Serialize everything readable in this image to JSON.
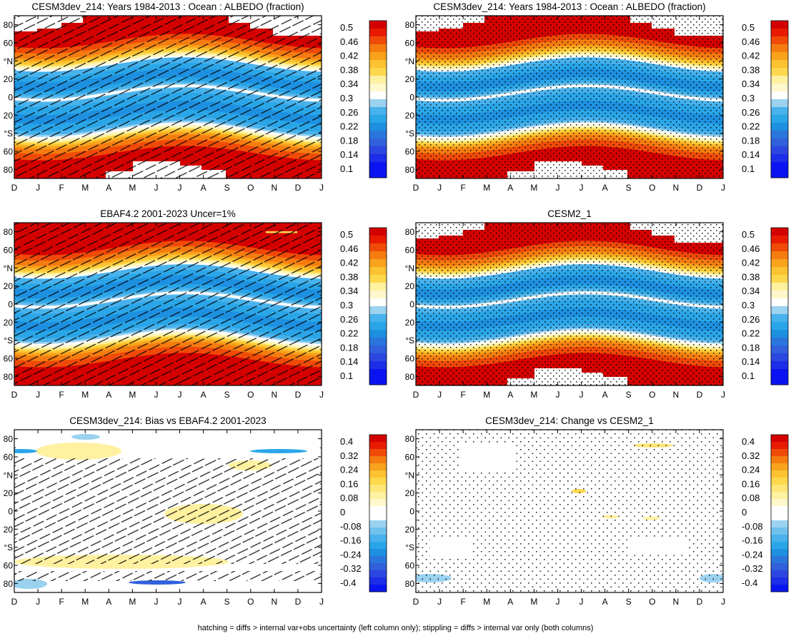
{
  "caption": "hatching = diffs > internal var+obs uncertainty (left column only); stippling = diffs > internal var only (both columns)",
  "colors": {
    "white": "#ffffff",
    "black": "#000000",
    "c50": "#d40000",
    "c48": "#e81a00",
    "c46": "#f04a08",
    "c44": "#f57c10",
    "c42": "#f9a21c",
    "c40": "#fcc230",
    "c38": "#fed84c",
    "c36": "#fee678",
    "c34": "#fff1a0",
    "c32": "#fff8cc",
    "b28": "#9ad2f0",
    "b26": "#70c2ec",
    "b24": "#48b2ec",
    "b22": "#2aa6e8",
    "b20": "#1e90e0",
    "b18": "#2a76dc",
    "b16": "#3060dc",
    "b14": "#2c46e0",
    "b12": "#1c2ee8",
    "b10": "#0a14f0"
  },
  "chart_data": [
    {
      "type": "heatmap",
      "id": "p1",
      "title": "CESM3dev_214: Years 1984-2013 : Ocean : ALBEDO (fraction)",
      "xlabel": "",
      "ylabel": "",
      "x": [
        "D",
        "J",
        "F",
        "M",
        "A",
        "M",
        "J",
        "J",
        "A",
        "S",
        "O",
        "N",
        "D",
        "J"
      ],
      "y_ticks": [
        "80",
        "60",
        "°N",
        "20",
        "0",
        "20",
        "°S",
        "60",
        "80"
      ],
      "y_values": [
        80,
        60,
        40,
        20,
        0,
        -20,
        -40,
        -60,
        -80
      ],
      "ylim": [
        -90,
        90
      ],
      "colorbar": [
        "0.5",
        "0.46",
        "0.42",
        "0.38",
        "0.34",
        "0.3",
        "0.26",
        "0.22",
        "0.18",
        "0.14",
        "0.1"
      ],
      "field": "mean",
      "overlay": "hatch"
    },
    {
      "type": "heatmap",
      "id": "p2",
      "title": "CESM3dev_214: Years 1984-2013 : Ocean : ALBEDO (fraction)",
      "xlabel": "",
      "ylabel": "",
      "x": [
        "D",
        "J",
        "F",
        "M",
        "A",
        "M",
        "J",
        "J",
        "A",
        "S",
        "O",
        "N",
        "D",
        "J"
      ],
      "y_ticks": [
        "80",
        "60",
        "°N",
        "20",
        "0",
        "20",
        "°S",
        "60",
        "80"
      ],
      "y_values": [
        80,
        60,
        40,
        20,
        0,
        -20,
        -40,
        -60,
        -80
      ],
      "ylim": [
        -90,
        90
      ],
      "colorbar": [
        "0.5",
        "0.46",
        "0.42",
        "0.38",
        "0.34",
        "0.3",
        "0.26",
        "0.22",
        "0.18",
        "0.14",
        "0.1"
      ],
      "field": "mean",
      "overlay": "stipple"
    },
    {
      "type": "heatmap",
      "id": "p3",
      "title": "EBAF4.2 2001-2023 Uncer=1%",
      "xlabel": "",
      "ylabel": "",
      "x": [
        "D",
        "J",
        "F",
        "M",
        "A",
        "M",
        "J",
        "J",
        "A",
        "S",
        "O",
        "N",
        "D",
        "J"
      ],
      "y_ticks": [
        "80",
        "60",
        "°N",
        "20",
        "0",
        "20",
        "°S",
        "60",
        "80"
      ],
      "y_values": [
        80,
        60,
        40,
        20,
        0,
        -20,
        -40,
        -60,
        -80
      ],
      "ylim": [
        -90,
        90
      ],
      "colorbar": [
        "0.5",
        "0.46",
        "0.42",
        "0.38",
        "0.34",
        "0.3",
        "0.26",
        "0.22",
        "0.18",
        "0.14",
        "0.1"
      ],
      "field": "obs",
      "overlay": "hatch"
    },
    {
      "type": "heatmap",
      "id": "p4",
      "title": "CESM2_1",
      "xlabel": "",
      "ylabel": "",
      "x": [
        "D",
        "J",
        "F",
        "M",
        "A",
        "M",
        "J",
        "J",
        "A",
        "S",
        "O",
        "N",
        "D",
        "J"
      ],
      "y_ticks": [
        "80",
        "60",
        "°N",
        "20",
        "0",
        "20",
        "°S",
        "60",
        "80"
      ],
      "y_values": [
        80,
        60,
        40,
        20,
        0,
        -20,
        -40,
        -60,
        -80
      ],
      "ylim": [
        -90,
        90
      ],
      "colorbar": [
        "0.5",
        "0.46",
        "0.42",
        "0.38",
        "0.34",
        "0.3",
        "0.26",
        "0.22",
        "0.18",
        "0.14",
        "0.1"
      ],
      "field": "mean",
      "overlay": "stipple"
    },
    {
      "type": "heatmap",
      "id": "p5",
      "title": "CESM3dev_214: Bias vs EBAF4.2 2001-2023",
      "xlabel": "",
      "ylabel": "",
      "x": [
        "D",
        "J",
        "F",
        "M",
        "A",
        "M",
        "J",
        "J",
        "A",
        "S",
        "O",
        "N",
        "D",
        "J"
      ],
      "y_ticks": [
        "80",
        "60",
        "°N",
        "20",
        "0",
        "20",
        "°S",
        "60",
        "80"
      ],
      "y_values": [
        80,
        60,
        40,
        20,
        0,
        -20,
        -40,
        -60,
        -80
      ],
      "ylim": [
        -90,
        90
      ],
      "colorbar": [
        "0.4",
        "0.32",
        "0.24",
        "0.16",
        "0.08",
        "0",
        "-0.08",
        "-0.16",
        "-0.24",
        "-0.32",
        "-0.4"
      ],
      "field": "bias",
      "overlay": "hatch"
    },
    {
      "type": "heatmap",
      "id": "p6",
      "title": "CESM3dev_214: Change vs CESM2_1",
      "xlabel": "",
      "ylabel": "",
      "x": [
        "D",
        "J",
        "F",
        "M",
        "A",
        "M",
        "J",
        "J",
        "A",
        "S",
        "O",
        "N",
        "D",
        "J"
      ],
      "y_ticks": [
        "80",
        "60",
        "°N",
        "20",
        "0",
        "20",
        "°S",
        "60",
        "80"
      ],
      "y_values": [
        80,
        60,
        40,
        20,
        0,
        -20,
        -40,
        -60,
        -80
      ],
      "ylim": [
        -90,
        90
      ],
      "colorbar": [
        "0.4",
        "0.32",
        "0.24",
        "0.16",
        "0.08",
        "0",
        "-0.08",
        "-0.16",
        "-0.24",
        "-0.32",
        "-0.4"
      ],
      "field": "change",
      "overlay": "stipple"
    }
  ]
}
